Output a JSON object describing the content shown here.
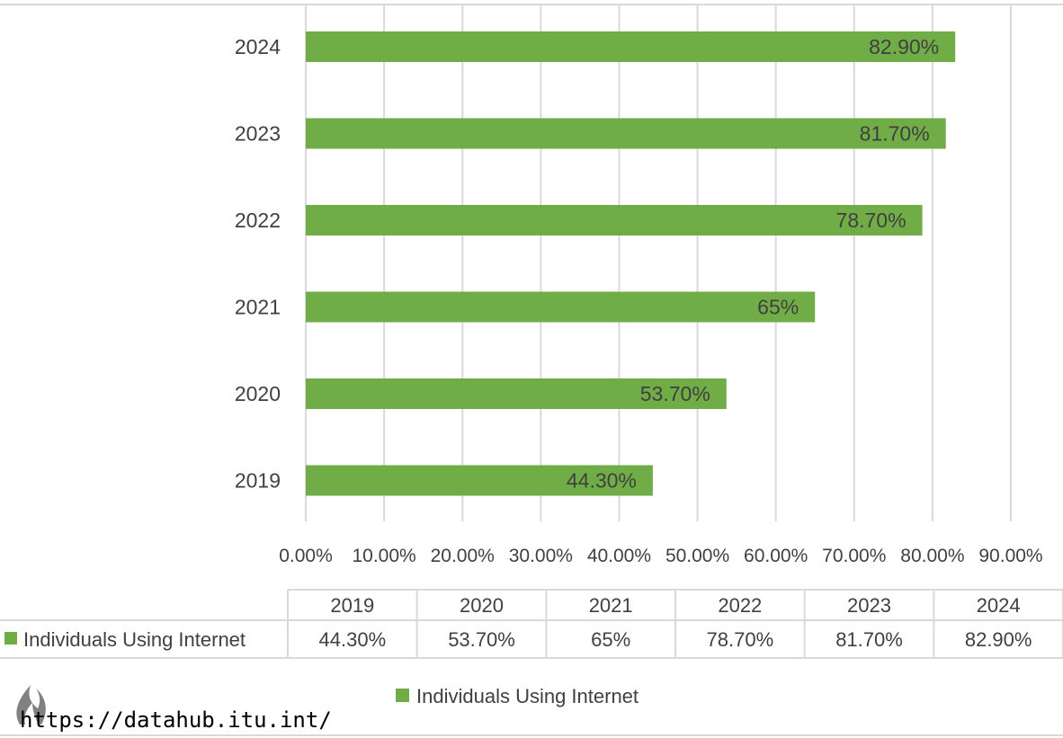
{
  "chart_data": {
    "type": "bar",
    "orientation": "horizontal",
    "categories": [
      "2024",
      "2023",
      "2022",
      "2021",
      "2020",
      "2019"
    ],
    "series": [
      {
        "name": "Individuals Using Internet",
        "values": [
          82.9,
          81.7,
          78.7,
          65,
          53.7,
          44.3
        ],
        "data_labels": [
          "82.90%",
          "81.70%",
          "78.70%",
          "65%",
          "53.70%",
          "44.30%"
        ]
      }
    ],
    "xlim": [
      0,
      90
    ],
    "x_ticks": [
      0,
      10,
      20,
      30,
      40,
      50,
      60,
      70,
      80,
      90
    ],
    "x_tick_labels": [
      "0.00%",
      "10.00%",
      "20.00%",
      "30.00%",
      "40.00%",
      "50.00%",
      "60.00%",
      "70.00%",
      "80.00%",
      "90.00%"
    ],
    "grid": true,
    "legend_position": "bottom",
    "data_table": {
      "columns": [
        "2019",
        "2020",
        "2021",
        "2022",
        "2023",
        "2024"
      ],
      "row_label": "Individuals Using Internet",
      "cells": [
        "44.30%",
        "53.70%",
        "65%",
        "78.70%",
        "81.70%",
        "82.90%"
      ]
    },
    "colors": {
      "bar": "#70ad47",
      "grid": "#d9d9d9",
      "text": "#404040"
    }
  },
  "legend": {
    "label": "Individuals Using Internet"
  },
  "source": {
    "text": "https://datahub.itu.int/"
  }
}
